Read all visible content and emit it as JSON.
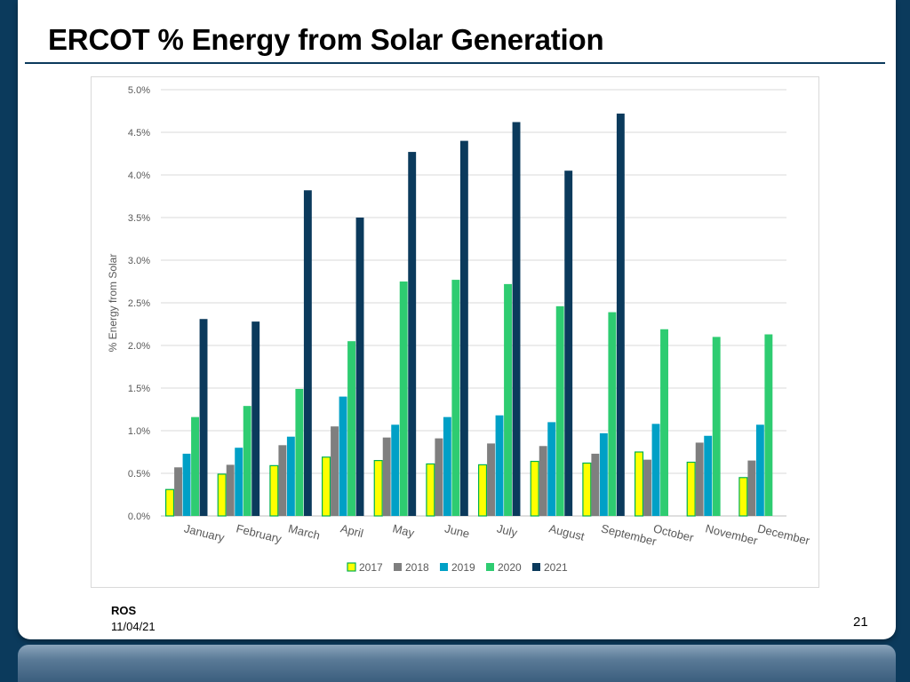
{
  "slide": {
    "title": "ERCOT % Energy from Solar Generation",
    "footer_org": "ROS",
    "footer_date": "11/04/21",
    "page_number": "21"
  },
  "colors": {
    "background": "#0b3a5c",
    "title_rule": "#0b3a5c"
  },
  "chart_data": {
    "type": "bar",
    "title": "",
    "xlabel": "",
    "ylabel": "% Energy from Solar",
    "ylim": [
      0,
      5.0
    ],
    "y_ticks": [
      "0.0%",
      "0.5%",
      "1.0%",
      "1.5%",
      "2.0%",
      "2.5%",
      "3.0%",
      "3.5%",
      "4.0%",
      "4.5%",
      "5.0%"
    ],
    "grid": true,
    "legend_position": "bottom",
    "categories": [
      "January",
      "February",
      "March",
      "April",
      "May",
      "June",
      "July",
      "August",
      "September",
      "October",
      "November",
      "December"
    ],
    "series": [
      {
        "name": "2017",
        "color": "#ffff00",
        "stroke": "#00b050",
        "values": [
          0.31,
          0.49,
          0.59,
          0.69,
          0.65,
          0.61,
          0.6,
          0.64,
          0.62,
          0.75,
          0.63,
          0.45
        ]
      },
      {
        "name": "2018",
        "color": "#7f7f7f",
        "values": [
          0.57,
          0.6,
          0.83,
          1.05,
          0.92,
          0.91,
          0.85,
          0.82,
          0.73,
          0.66,
          0.86,
          0.65
        ]
      },
      {
        "name": "2019",
        "color": "#00a0c6",
        "values": [
          0.73,
          0.8,
          0.93,
          1.4,
          1.07,
          1.16,
          1.18,
          1.1,
          0.97,
          1.08,
          0.94,
          1.07
        ]
      },
      {
        "name": "2020",
        "color": "#2ecc71",
        "values": [
          1.16,
          1.29,
          1.49,
          2.05,
          2.75,
          2.77,
          2.72,
          2.46,
          2.39,
          2.19,
          2.1,
          2.13
        ]
      },
      {
        "name": "2021",
        "color": "#0b3a5c",
        "values": [
          2.31,
          2.28,
          3.82,
          3.5,
          4.27,
          4.4,
          4.62,
          4.05,
          4.72,
          null,
          null,
          null
        ]
      }
    ]
  }
}
